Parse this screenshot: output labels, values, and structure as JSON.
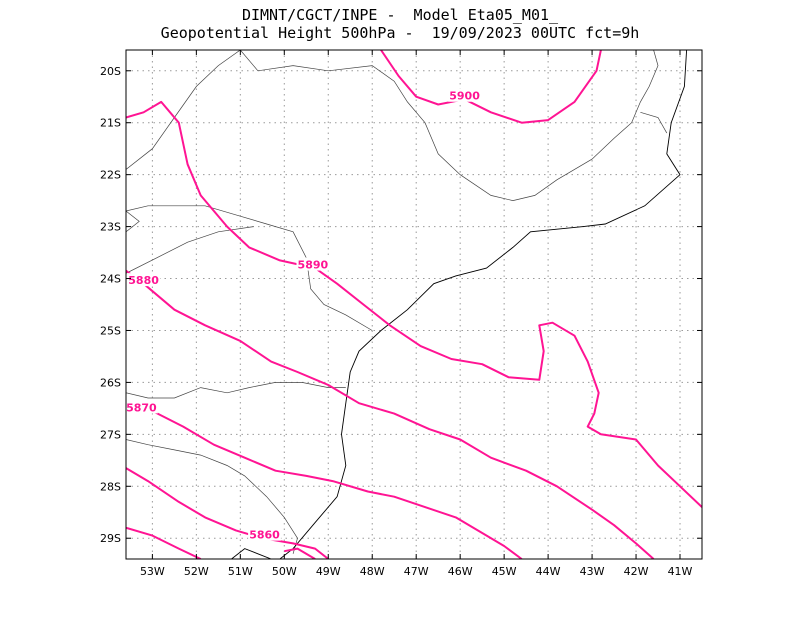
{
  "title": {
    "line1": "DIMNT/CGCT/INPE -  Model Eta05_M01_",
    "line2": "Geopotential Height 500hPa -  19/09/2023 00UTC fct=9h"
  },
  "map": {
    "lon_range": [
      -53.6,
      -40.5
    ],
    "lat_range": [
      -29.4,
      -19.6
    ],
    "lon_ticks": [
      -53,
      -52,
      -51,
      -50,
      -49,
      -48,
      -47,
      -46,
      -45,
      -44,
      -43,
      -42,
      -41
    ],
    "lat_ticks": [
      -20,
      -21,
      -22,
      -23,
      -24,
      -25,
      -26,
      -27,
      -28,
      -29
    ],
    "lon_tick_labels": [
      "53W",
      "52W",
      "51W",
      "50W",
      "49W",
      "48W",
      "47W",
      "46W",
      "45W",
      "44W",
      "43W",
      "42W",
      "41W"
    ],
    "lat_tick_labels": [
      "20S",
      "21S",
      "22S",
      "23S",
      "24S",
      "25S",
      "26S",
      "27S",
      "28S",
      "29S"
    ],
    "grid": true,
    "contour_color": "#ff1493",
    "coast_color": "#000000"
  },
  "contours": [
    {
      "value": "5900",
      "label_lonlat": [
        -45.9,
        -20.5
      ],
      "points": [
        [
          -47.8,
          -19.6
        ],
        [
          -47.4,
          -20.1
        ],
        [
          -47.0,
          -20.5
        ],
        [
          -46.5,
          -20.65
        ],
        [
          -45.9,
          -20.55
        ],
        [
          -45.3,
          -20.8
        ],
        [
          -44.6,
          -21.0
        ],
        [
          -44.0,
          -20.95
        ],
        [
          -43.4,
          -20.6
        ],
        [
          -42.9,
          -20.0
        ],
        [
          -42.8,
          -19.6
        ]
      ]
    },
    {
      "value": "5890",
      "label_lonlat": [
        -49.35,
        -23.75
      ],
      "points": [
        [
          -53.6,
          -20.9
        ],
        [
          -53.2,
          -20.8
        ],
        [
          -52.8,
          -20.6
        ],
        [
          -52.4,
          -21.0
        ],
        [
          -52.2,
          -21.8
        ],
        [
          -51.9,
          -22.4
        ],
        [
          -51.3,
          -23.0
        ],
        [
          -50.8,
          -23.4
        ],
        [
          -50.1,
          -23.65
        ],
        [
          -49.3,
          -23.8
        ],
        [
          -48.8,
          -24.1
        ],
        [
          -48.2,
          -24.5
        ],
        [
          -47.6,
          -24.9
        ],
        [
          -46.9,
          -25.3
        ],
        [
          -46.2,
          -25.55
        ],
        [
          -45.5,
          -25.65
        ],
        [
          -44.9,
          -25.9
        ],
        [
          -44.2,
          -25.95
        ],
        [
          -44.1,
          -25.4
        ],
        [
          -44.2,
          -24.9
        ],
        [
          -43.9,
          -24.85
        ],
        [
          -43.4,
          -25.1
        ],
        [
          -43.1,
          -25.6
        ],
        [
          -42.85,
          -26.2
        ],
        [
          -42.95,
          -26.6
        ],
        [
          -43.1,
          -26.85
        ],
        [
          -42.8,
          -27.0
        ],
        [
          -42.0,
          -27.1
        ],
        [
          -41.5,
          -27.6
        ],
        [
          -41.0,
          -28.0
        ],
        [
          -40.5,
          -28.4
        ]
      ]
    },
    {
      "value": "5880",
      "label_lonlat": [
        -53.2,
        -24.05
      ],
      "points": [
        [
          -53.6,
          -23.85
        ],
        [
          -53.2,
          -24.1
        ],
        [
          -52.5,
          -24.6
        ],
        [
          -51.8,
          -24.9
        ],
        [
          -51.0,
          -25.2
        ],
        [
          -50.3,
          -25.6
        ],
        [
          -49.7,
          -25.8
        ],
        [
          -49.0,
          -26.05
        ],
        [
          -48.3,
          -26.4
        ],
        [
          -47.5,
          -26.6
        ],
        [
          -46.7,
          -26.9
        ],
        [
          -46.0,
          -27.1
        ],
        [
          -45.3,
          -27.45
        ],
        [
          -44.5,
          -27.7
        ],
        [
          -43.8,
          -28.0
        ],
        [
          -43.0,
          -28.45
        ],
        [
          -42.5,
          -28.75
        ],
        [
          -42.0,
          -29.1
        ],
        [
          -41.6,
          -29.4
        ]
      ]
    },
    {
      "value": "5870",
      "label_lonlat": [
        -53.25,
        -26.5
      ],
      "points": [
        [
          -53.6,
          -26.4
        ],
        [
          -53.0,
          -26.55
        ],
        [
          -52.3,
          -26.85
        ],
        [
          -51.6,
          -27.2
        ],
        [
          -50.9,
          -27.45
        ],
        [
          -50.2,
          -27.7
        ],
        [
          -49.5,
          -27.8
        ],
        [
          -48.9,
          -27.9
        ],
        [
          -48.1,
          -28.1
        ],
        [
          -47.5,
          -28.2
        ],
        [
          -46.8,
          -28.4
        ],
        [
          -46.1,
          -28.6
        ],
        [
          -45.5,
          -28.9
        ],
        [
          -45.0,
          -29.15
        ],
        [
          -44.6,
          -29.4
        ]
      ]
    },
    {
      "value": "5860",
      "label_lonlat": [
        -50.45,
        -28.95
      ],
      "points": [
        [
          -53.6,
          -27.65
        ],
        [
          -53.1,
          -27.9
        ],
        [
          -52.4,
          -28.3
        ],
        [
          -51.8,
          -28.6
        ],
        [
          -51.1,
          -28.85
        ],
        [
          -50.5,
          -29.0
        ],
        [
          -49.8,
          -29.1
        ],
        [
          -49.3,
          -29.2
        ],
        [
          -49.0,
          -29.4
        ]
      ]
    },
    {
      "value": "",
      "label_lonlat": null,
      "points": [
        [
          -53.6,
          -28.8
        ],
        [
          -53.0,
          -28.95
        ],
        [
          -52.4,
          -29.2
        ],
        [
          -51.9,
          -29.4
        ]
      ]
    },
    {
      "value": "",
      "label_lonlat": null,
      "points": [
        [
          -50.0,
          -29.25
        ],
        [
          -49.7,
          -29.2
        ],
        [
          -49.3,
          -29.4
        ]
      ]
    }
  ],
  "coastlines": [
    {
      "name": "brazil-south-coast",
      "points": [
        [
          -40.85,
          -19.6
        ],
        [
          -40.9,
          -20.3
        ],
        [
          -41.2,
          -21.0
        ],
        [
          -41.3,
          -21.6
        ],
        [
          -41.0,
          -22.0
        ],
        [
          -41.8,
          -22.6
        ],
        [
          -42.7,
          -22.95
        ],
        [
          -43.2,
          -23.0
        ],
        [
          -43.8,
          -23.05
        ],
        [
          -44.4,
          -23.1
        ],
        [
          -44.8,
          -23.4
        ],
        [
          -45.4,
          -23.8
        ],
        [
          -46.1,
          -23.95
        ],
        [
          -46.6,
          -24.1
        ],
        [
          -47.2,
          -24.6
        ],
        [
          -47.8,
          -25.0
        ],
        [
          -48.3,
          -25.4
        ],
        [
          -48.5,
          -25.8
        ],
        [
          -48.6,
          -26.4
        ],
        [
          -48.7,
          -27.0
        ],
        [
          -48.6,
          -27.6
        ],
        [
          -48.8,
          -28.2
        ],
        [
          -49.3,
          -28.7
        ],
        [
          -49.8,
          -29.2
        ],
        [
          -50.1,
          -29.4
        ]
      ]
    },
    {
      "name": "lagoa-dos-patos",
      "points": [
        [
          -51.2,
          -29.4
        ],
        [
          -50.9,
          -29.2
        ],
        [
          -50.6,
          -29.3
        ],
        [
          -50.3,
          -29.4
        ]
      ]
    }
  ],
  "borders": [
    {
      "name": "minas-gerais-border",
      "points": [
        [
          -51.0,
          -19.6
        ],
        [
          -50.6,
          -20.0
        ],
        [
          -49.8,
          -19.9
        ],
        [
          -49.0,
          -20.0
        ],
        [
          -48.0,
          -19.9
        ],
        [
          -47.5,
          -20.2
        ],
        [
          -47.2,
          -20.6
        ],
        [
          -46.8,
          -21.0
        ],
        [
          -46.5,
          -21.6
        ],
        [
          -46.0,
          -22.0
        ],
        [
          -45.3,
          -22.4
        ],
        [
          -44.8,
          -22.5
        ],
        [
          -44.3,
          -22.4
        ],
        [
          -43.8,
          -22.1
        ],
        [
          -43.0,
          -21.7
        ],
        [
          -42.5,
          -21.3
        ],
        [
          -42.1,
          -21.0
        ],
        [
          -41.9,
          -20.6
        ],
        [
          -41.7,
          -20.3
        ],
        [
          -41.5,
          -19.9
        ],
        [
          -41.6,
          -19.6
        ]
      ]
    },
    {
      "name": "rio-espirito-santo-border",
      "points": [
        [
          -41.9,
          -20.8
        ],
        [
          -41.5,
          -20.9
        ],
        [
          -41.3,
          -21.2
        ]
      ]
    },
    {
      "name": "sao-paulo-parana-border",
      "points": [
        [
          -53.6,
          -22.7
        ],
        [
          -53.1,
          -22.6
        ],
        [
          -52.5,
          -22.6
        ],
        [
          -51.8,
          -22.6
        ],
        [
          -51.0,
          -22.8
        ],
        [
          -50.4,
          -22.95
        ],
        [
          -49.8,
          -23.1
        ],
        [
          -49.5,
          -23.6
        ],
        [
          -49.4,
          -24.2
        ],
        [
          -49.1,
          -24.5
        ],
        [
          -48.6,
          -24.7
        ],
        [
          -48.0,
          -25.0
        ]
      ]
    },
    {
      "name": "mato-grosso-sul-border",
      "points": [
        [
          -53.6,
          -21.9
        ],
        [
          -53.0,
          -21.5
        ],
        [
          -52.5,
          -20.9
        ],
        [
          -52.0,
          -20.3
        ],
        [
          -51.5,
          -19.9
        ],
        [
          -51.0,
          -19.6
        ]
      ]
    },
    {
      "name": "mato-grosso-sul-south",
      "points": [
        [
          -53.6,
          -22.7
        ],
        [
          -53.3,
          -22.9
        ],
        [
          -53.6,
          -23.1
        ]
      ]
    },
    {
      "name": "parana-santa-catarina-border",
      "points": [
        [
          -53.6,
          -26.2
        ],
        [
          -53.1,
          -26.3
        ],
        [
          -52.5,
          -26.3
        ],
        [
          -51.9,
          -26.1
        ],
        [
          -51.3,
          -26.2
        ],
        [
          -50.8,
          -26.1
        ],
        [
          -50.2,
          -26.0
        ],
        [
          -49.6,
          -26.0
        ],
        [
          -49.0,
          -26.1
        ],
        [
          -48.6,
          -26.1
        ]
      ]
    },
    {
      "name": "santa-catarina-rio-grande-border",
      "points": [
        [
          -53.6,
          -27.1
        ],
        [
          -53.1,
          -27.2
        ],
        [
          -52.5,
          -27.3
        ],
        [
          -51.9,
          -27.4
        ],
        [
          -51.3,
          -27.6
        ],
        [
          -50.9,
          -27.8
        ],
        [
          -50.4,
          -28.2
        ],
        [
          -50.0,
          -28.6
        ],
        [
          -49.7,
          -29.0
        ],
        [
          -49.8,
          -29.3
        ]
      ]
    },
    {
      "name": "serra-do-mar-line",
      "points": [
        [
          -53.6,
          -23.9
        ],
        [
          -52.9,
          -23.6
        ],
        [
          -52.2,
          -23.3
        ],
        [
          -51.5,
          -23.1
        ],
        [
          -50.7,
          -23.0
        ]
      ]
    }
  ]
}
